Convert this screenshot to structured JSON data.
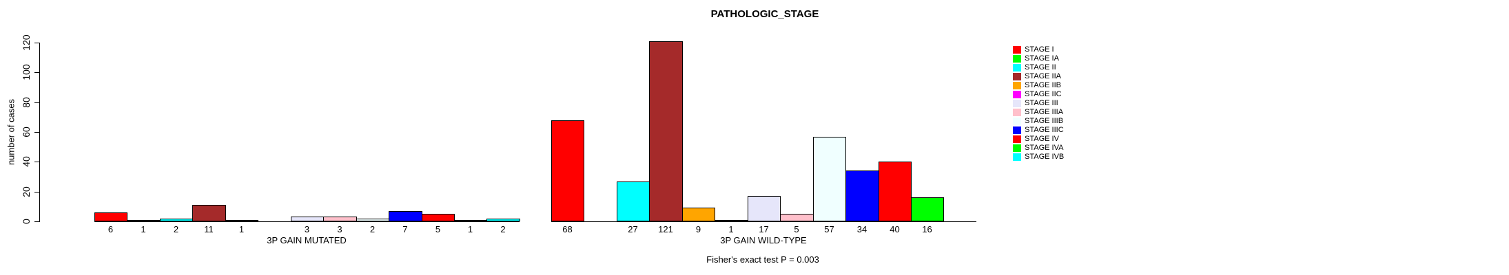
{
  "chart_data": {
    "type": "bar",
    "title": "PATHOLOGIC_STAGE",
    "ylabel": "number of cases",
    "ylim": [
      0,
      120
    ],
    "yticks": [
      0,
      20,
      40,
      60,
      80,
      100,
      120
    ],
    "grid": false,
    "legend_position": "right",
    "categories": [
      "STAGE I",
      "STAGE IA",
      "STAGE II",
      "STAGE IIA",
      "STAGE IIB",
      "STAGE IIC",
      "STAGE III",
      "STAGE IIIA",
      "STAGE IIIB",
      "STAGE IIIC",
      "STAGE IV",
      "STAGE IVA",
      "STAGE IVB"
    ],
    "legend": [
      {
        "label": "STAGE I",
        "color": "#FF0000"
      },
      {
        "label": "STAGE IA",
        "color": "#00FF00"
      },
      {
        "label": "STAGE II",
        "color": "#00FFFF"
      },
      {
        "label": "STAGE IIA",
        "color": "#A52A2A"
      },
      {
        "label": "STAGE IIB",
        "color": "#FFA500"
      },
      {
        "label": "STAGE IIC",
        "color": "#FF00FF"
      },
      {
        "label": "STAGE III",
        "color": "#E6E6FA"
      },
      {
        "label": "STAGE IIIA",
        "color": "#FFC0CB"
      },
      {
        "label": "STAGE IIIB",
        "color": "#F0FFFF"
      },
      {
        "label": "STAGE IIIC",
        "color": "#0000FF"
      },
      {
        "label": "STAGE IV",
        "color": "#FF0000"
      },
      {
        "label": "STAGE IVA",
        "color": "#00FF00"
      },
      {
        "label": "STAGE IVB",
        "color": "#00FFFF"
      }
    ],
    "series": [
      {
        "name": "3P GAIN MUTATED",
        "values": [
          6,
          1,
          2,
          11,
          1,
          0,
          3,
          3,
          2,
          7,
          5,
          1,
          2
        ]
      },
      {
        "name": "3P GAIN WILD-TYPE",
        "values": [
          68,
          0,
          27,
          121,
          9,
          1,
          17,
          5,
          57,
          34,
          40,
          16,
          0
        ]
      }
    ],
    "annotation": "Fisher's exact test P = 0.003"
  }
}
